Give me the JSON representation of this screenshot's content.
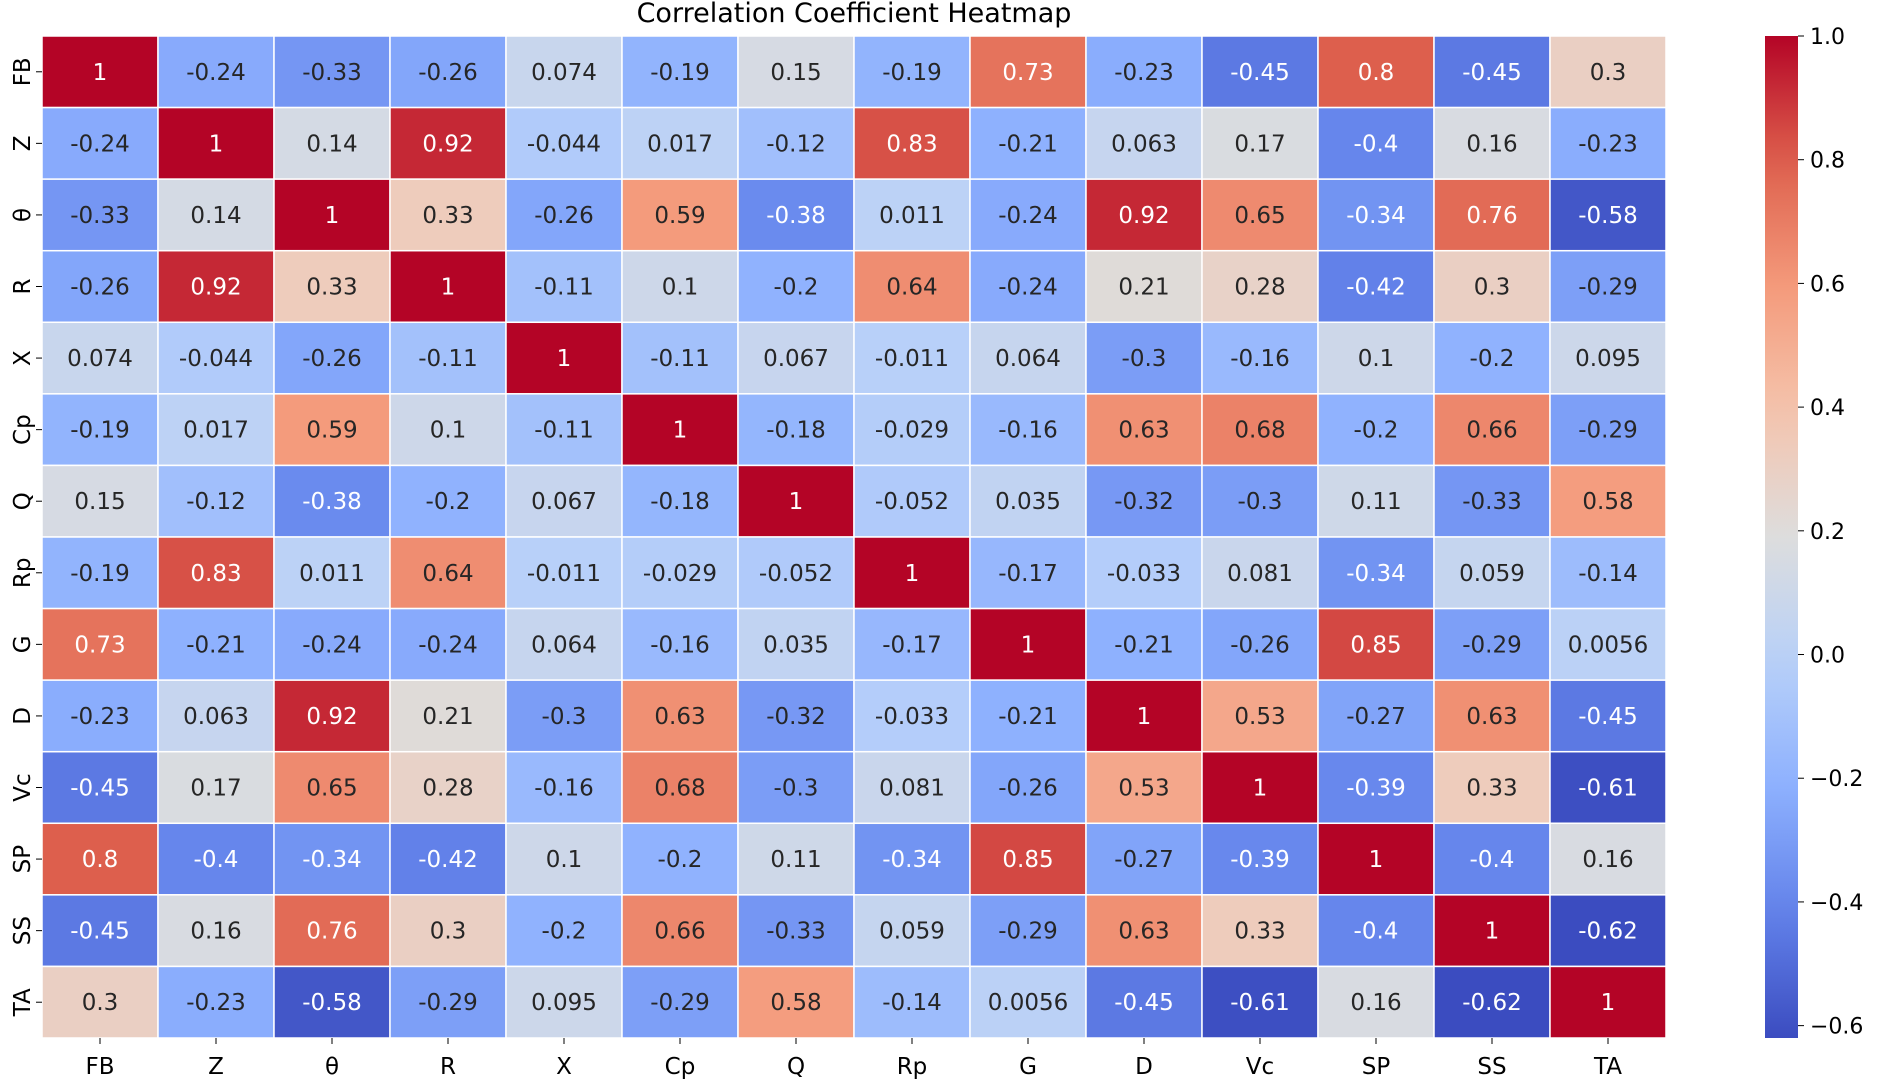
{
  "chart_data": {
    "type": "heatmap",
    "title": "Correlation Coefficient Heatmap",
    "xlabel": "",
    "ylabel": "",
    "colormap": "coolwarm",
    "vmin": -0.62,
    "vmax": 1.0,
    "colorbar_ticks": [
      1.0,
      0.8,
      0.6,
      0.4,
      0.2,
      0.0,
      -0.2,
      -0.4,
      -0.6
    ],
    "colorbar_tick_labels": [
      "1.0",
      "0.8",
      "0.6",
      "0.4",
      "0.2",
      "0.0",
      "−0.2",
      "−0.4",
      "−0.6"
    ],
    "x_categories": [
      "FB",
      "Z",
      "θ",
      "R",
      "X",
      "Cp",
      "Q",
      "Rp",
      "G",
      "D",
      "Vc",
      "SP",
      "SS",
      "TA"
    ],
    "y_categories": [
      "FB",
      "Z",
      "θ",
      "R",
      "X",
      "Cp",
      "Q",
      "Rp",
      "G",
      "D",
      "Vc",
      "SP",
      "SS",
      "TA"
    ],
    "values": [
      [
        1,
        -0.24,
        -0.33,
        -0.26,
        0.074,
        -0.19,
        0.15,
        -0.19,
        0.73,
        -0.23,
        -0.45,
        0.8,
        -0.45,
        0.3
      ],
      [
        -0.24,
        1,
        0.14,
        0.92,
        -0.044,
        0.017,
        -0.12,
        0.83,
        -0.21,
        0.063,
        0.17,
        -0.4,
        0.16,
        -0.23
      ],
      [
        -0.33,
        0.14,
        1,
        0.33,
        -0.26,
        0.59,
        -0.38,
        0.011,
        -0.24,
        0.92,
        0.65,
        -0.34,
        0.76,
        -0.58
      ],
      [
        -0.26,
        0.92,
        0.33,
        1,
        -0.11,
        0.1,
        -0.2,
        0.64,
        -0.24,
        0.21,
        0.28,
        -0.42,
        0.3,
        -0.29
      ],
      [
        0.074,
        -0.044,
        -0.26,
        -0.11,
        1,
        -0.11,
        0.067,
        -0.011,
        0.064,
        -0.3,
        -0.16,
        0.1,
        -0.2,
        0.095
      ],
      [
        -0.19,
        0.017,
        0.59,
        0.1,
        -0.11,
        1,
        -0.18,
        -0.029,
        -0.16,
        0.63,
        0.68,
        -0.2,
        0.66,
        -0.29
      ],
      [
        0.15,
        -0.12,
        -0.38,
        -0.2,
        0.067,
        -0.18,
        1,
        -0.052,
        0.035,
        -0.32,
        -0.3,
        0.11,
        -0.33,
        0.58
      ],
      [
        -0.19,
        0.83,
        0.011,
        0.64,
        -0.011,
        -0.029,
        -0.052,
        1,
        -0.17,
        -0.033,
        0.081,
        -0.34,
        0.059,
        -0.14
      ],
      [
        0.73,
        -0.21,
        -0.24,
        -0.24,
        0.064,
        -0.16,
        0.035,
        -0.17,
        1,
        -0.21,
        -0.26,
        0.85,
        -0.29,
        0.0056
      ],
      [
        -0.23,
        0.063,
        0.92,
        0.21,
        -0.3,
        0.63,
        -0.32,
        -0.033,
        -0.21,
        1,
        0.53,
        -0.27,
        0.63,
        -0.45
      ],
      [
        -0.45,
        0.17,
        0.65,
        0.28,
        -0.16,
        0.68,
        -0.3,
        0.081,
        -0.26,
        0.53,
        1,
        -0.39,
        0.33,
        -0.61
      ],
      [
        0.8,
        -0.4,
        -0.34,
        -0.42,
        0.1,
        -0.2,
        0.11,
        -0.34,
        0.85,
        -0.27,
        -0.39,
        1,
        -0.4,
        0.16
      ],
      [
        -0.45,
        0.16,
        0.76,
        0.3,
        -0.2,
        0.66,
        -0.33,
        0.059,
        -0.29,
        0.63,
        0.33,
        -0.4,
        1,
        -0.62
      ],
      [
        0.3,
        -0.23,
        -0.58,
        -0.29,
        0.095,
        -0.29,
        0.58,
        -0.14,
        0.0056,
        -0.45,
        -0.61,
        0.16,
        -0.62,
        1
      ]
    ],
    "annotations": true,
    "grid": false,
    "legend": "colorbar-right"
  }
}
